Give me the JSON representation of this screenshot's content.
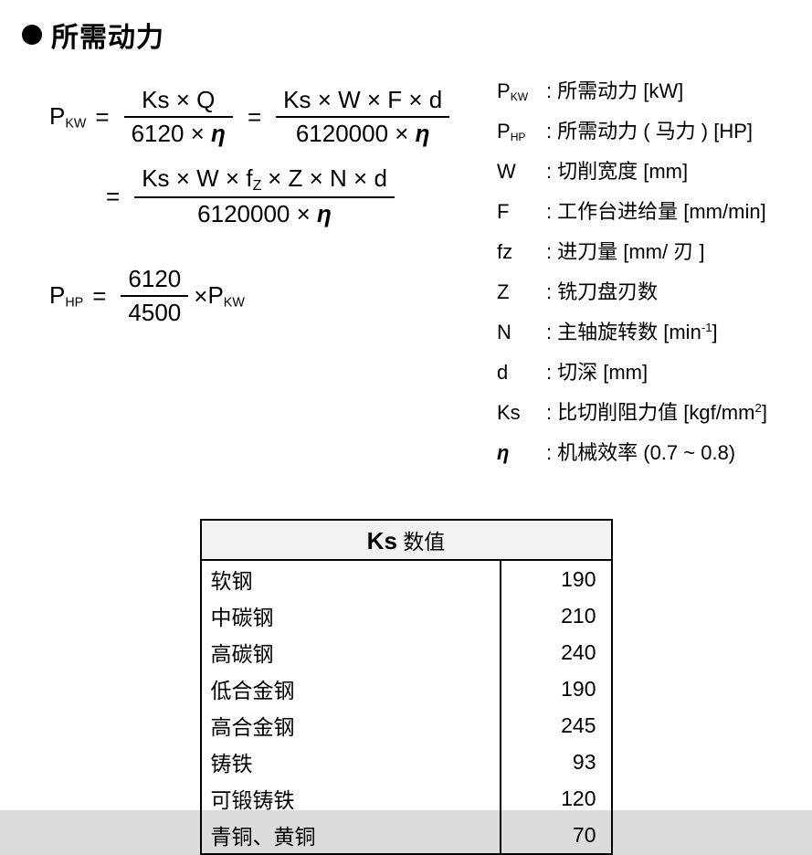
{
  "heading": "所需动力",
  "formula1": {
    "lhs_main": "P",
    "lhs_sub": "KW",
    "f1_num": "Ks × Q",
    "f1_den_a": "6120 × ",
    "f1_den_eta": "η",
    "f2_num": "Ks × W × F × d",
    "f2_den_a": "6120000 × ",
    "f2_den_eta": "η"
  },
  "formula2": {
    "num_a": "Ks × W × f",
    "num_sub": "Z",
    "num_b": " × Z × N × d",
    "den_a": "6120000 × ",
    "den_eta": "η"
  },
  "formula3": {
    "lhs_main": "P",
    "lhs_sub": "HP",
    "num": "6120",
    "den": "4500",
    "times": " × ",
    "rhs_main": "P",
    "rhs_sub": "KW"
  },
  "defs": [
    {
      "sym_html": "P<sub>KW</sub>",
      "sym": "P",
      "sub": "KW",
      "label": "所需动力 [kW]"
    },
    {
      "sym_html": "P<sub>HP</sub>",
      "sym": "P",
      "sub": "HP",
      "label": "所需动力 ( 马力 ) [HP]"
    },
    {
      "sym": "W",
      "label": "切削宽度 [mm]"
    },
    {
      "sym": "F",
      "label": "工作台进给量 [mm/min]"
    },
    {
      "sym": "fz",
      "label": "进刀量 [mm/ 刃 ]"
    },
    {
      "sym": "Z",
      "label": "铣刀盘刃数"
    },
    {
      "sym": "N",
      "label": "主轴旋转数 [min",
      "sup": "-1",
      "tail": "]"
    },
    {
      "sym": "d",
      "label": "切深 [mm]"
    },
    {
      "sym": "Ks",
      "label": "比切削阻力值 [kgf/mm",
      "sup": "2",
      "tail": "]"
    },
    {
      "sym": "η",
      "eta": true,
      "label": "机械效率 (0.7 ~ 0.8)"
    }
  ],
  "table": {
    "title_b": "Ks",
    "title_rest": " 数值",
    "col_name_width": 300,
    "rows": [
      {
        "name": "软钢",
        "val": "190"
      },
      {
        "name": "中碳钢",
        "val": "210"
      },
      {
        "name": "高碳钢",
        "val": "240"
      },
      {
        "name": "低合金钢",
        "val": "190"
      },
      {
        "name": "高合金钢",
        "val": "245"
      },
      {
        "name": "铸铁",
        "val": "93"
      },
      {
        "name": "可锻铸铁",
        "val": "120"
      },
      {
        "name": "青铜、黄铜",
        "val": "70"
      }
    ]
  },
  "style": {
    "background": "#ffffff",
    "text_color": "#000000",
    "table_header_bg": "#f2f2f2",
    "border_color": "#000000",
    "heading_fontsize": 30,
    "body_fontsize": 22,
    "formula_fontsize": 26,
    "table_fontsize": 23
  }
}
